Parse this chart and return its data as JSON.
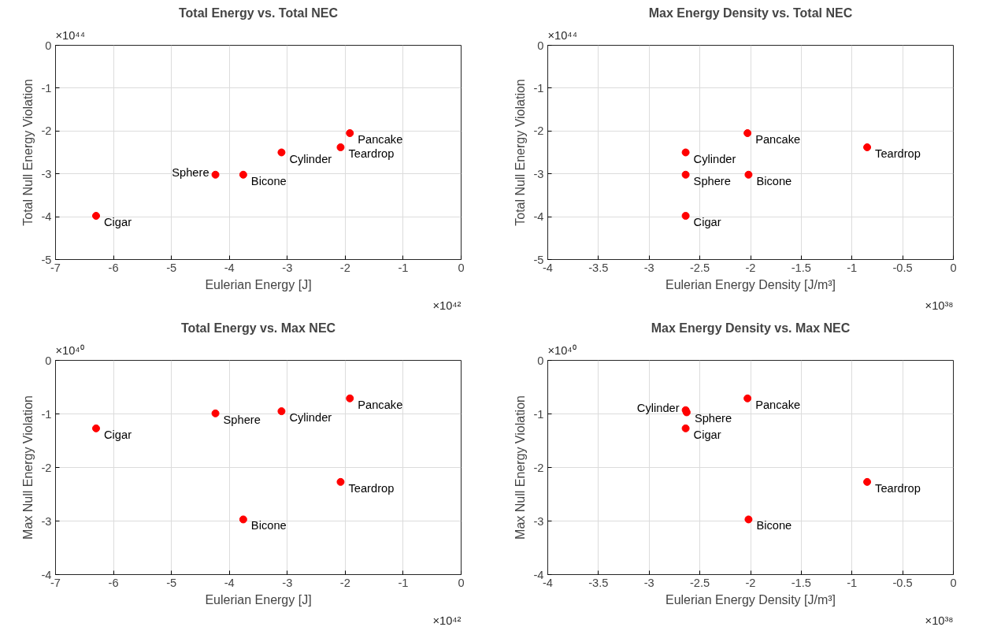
{
  "chart_data": [
    {
      "type": "scatter",
      "title": "Total Energy vs. Total NEC",
      "xlabel": "Eulerian Energy [J]",
      "ylabel": "Total Null Energy Violation",
      "x": [
        -6.3,
        -3.1,
        -4.24,
        -3.76,
        -2.08,
        -1.92
      ],
      "series": [
        {
          "color": "#ff0000",
          "values": [
            -3.98,
            -2.5,
            -3.02,
            -3.02,
            -2.38,
            -2.05
          ]
        }
      ],
      "xlim": [
        -7,
        0
      ],
      "xticks": [
        -7,
        -6,
        -5,
        -4,
        -3,
        -2,
        -1,
        0
      ],
      "ylim": [
        -5,
        0
      ],
      "yticks": [
        -5,
        -4,
        -3,
        -2,
        -1,
        0
      ],
      "grid": true,
      "marker": "circle",
      "annotations": [
        "×10⁴⁴",
        "×10⁴²",
        {
          "text": "Cigar",
          "x": -6.3,
          "y": -3.98
        },
        {
          "text": "Cylinder",
          "x": -3.1,
          "y": -2.5
        },
        {
          "text": "Sphere",
          "x": -4.24,
          "y": -3.02
        },
        {
          "text": "Bicone",
          "x": -3.76,
          "y": -3.02
        },
        {
          "text": "Teardrop",
          "x": -2.08,
          "y": -2.38
        },
        {
          "text": "Pancake",
          "x": -1.92,
          "y": -2.05
        }
      ]
    },
    {
      "type": "scatter",
      "title": "Max Energy Density vs. Total NEC",
      "xlabel": "Eulerian Energy Density [J/m³]",
      "ylabel": "Total Null Energy Violation",
      "x": [
        -2.64,
        -2.64,
        -2.64,
        -2.02,
        -0.85,
        -2.03
      ],
      "series": [
        {
          "color": "#ff0000",
          "values": [
            -3.98,
            -2.5,
            -3.02,
            -3.02,
            -2.38,
            -2.05
          ]
        }
      ],
      "xlim": [
        -4,
        0
      ],
      "xticks": [
        -4,
        -3.5,
        -3,
        -2.5,
        -2,
        -1.5,
        -1,
        -0.5,
        0
      ],
      "ylim": [
        -5,
        0
      ],
      "yticks": [
        -5,
        -4,
        -3,
        -2,
        -1,
        0
      ],
      "grid": true,
      "marker": "circle",
      "annotations": [
        "×10⁴⁴",
        "×10³⁸",
        {
          "text": "Cigar",
          "x": -2.64,
          "y": -3.98
        },
        {
          "text": "Cylinder",
          "x": -2.64,
          "y": -2.5
        },
        {
          "text": "Sphere",
          "x": -2.64,
          "y": -3.02
        },
        {
          "text": "Bicone",
          "x": -2.02,
          "y": -3.02
        },
        {
          "text": "Teardrop",
          "x": -0.85,
          "y": -2.38
        },
        {
          "text": "Pancake",
          "x": -2.03,
          "y": -2.05
        }
      ]
    },
    {
      "type": "scatter",
      "title": "Total Energy vs. Max NEC",
      "xlabel": "Eulerian Energy [J]",
      "ylabel": "Max Null Energy Violation",
      "x": [
        -6.3,
        -3.1,
        -4.24,
        -3.76,
        -2.08,
        -1.92
      ],
      "series": [
        {
          "color": "#ff0000",
          "values": [
            -1.27,
            -0.95,
            -0.99,
            -2.97,
            -2.27,
            -0.71
          ]
        }
      ],
      "xlim": [
        -7,
        0
      ],
      "xticks": [
        -7,
        -6,
        -5,
        -4,
        -3,
        -2,
        -1,
        0
      ],
      "ylim": [
        -4,
        0
      ],
      "yticks": [
        -4,
        -3,
        -2,
        -1,
        0
      ],
      "grid": true,
      "marker": "circle",
      "annotations": [
        "×10⁴⁰",
        "×10⁴²",
        {
          "text": "Cigar",
          "x": -6.3,
          "y": -1.27
        },
        {
          "text": "Cylinder",
          "x": -3.1,
          "y": -0.95
        },
        {
          "text": "Sphere",
          "x": -4.24,
          "y": -0.99
        },
        {
          "text": "Bicone",
          "x": -3.76,
          "y": -2.97
        },
        {
          "text": "Teardrop",
          "x": -2.08,
          "y": -2.27
        },
        {
          "text": "Pancake",
          "x": -1.92,
          "y": -0.71
        }
      ]
    },
    {
      "type": "scatter",
      "title": "Max Energy Density vs. Max NEC",
      "xlabel": "Eulerian Energy Density [J/m³]",
      "ylabel": "Max Null Energy Violation",
      "x": [
        -2.64,
        -2.64,
        -2.63,
        -2.02,
        -0.85,
        -2.03
      ],
      "series": [
        {
          "color": "#ff0000",
          "values": [
            -1.27,
            -0.93,
            -0.97,
            -2.97,
            -2.27,
            -0.71
          ]
        }
      ],
      "xlim": [
        -4,
        0
      ],
      "xticks": [
        -4,
        -3.5,
        -3,
        -2.5,
        -2,
        -1.5,
        -1,
        -0.5,
        0
      ],
      "ylim": [
        -4,
        0
      ],
      "yticks": [
        -4,
        -3,
        -2,
        -1,
        0
      ],
      "grid": true,
      "marker": "circle",
      "annotations": [
        "×10⁴⁰",
        "×10³⁸",
        {
          "text": "Cigar",
          "x": -2.64,
          "y": -1.27
        },
        {
          "text": "Cylinder",
          "x": -2.64,
          "y": -0.93
        },
        {
          "text": "Sphere",
          "x": -2.63,
          "y": -0.97
        },
        {
          "text": "Bicone",
          "x": -2.02,
          "y": -2.97
        },
        {
          "text": "Teardrop",
          "x": -0.85,
          "y": -2.27
        },
        {
          "text": "Pancake",
          "x": -2.03,
          "y": -0.71
        }
      ]
    }
  ]
}
